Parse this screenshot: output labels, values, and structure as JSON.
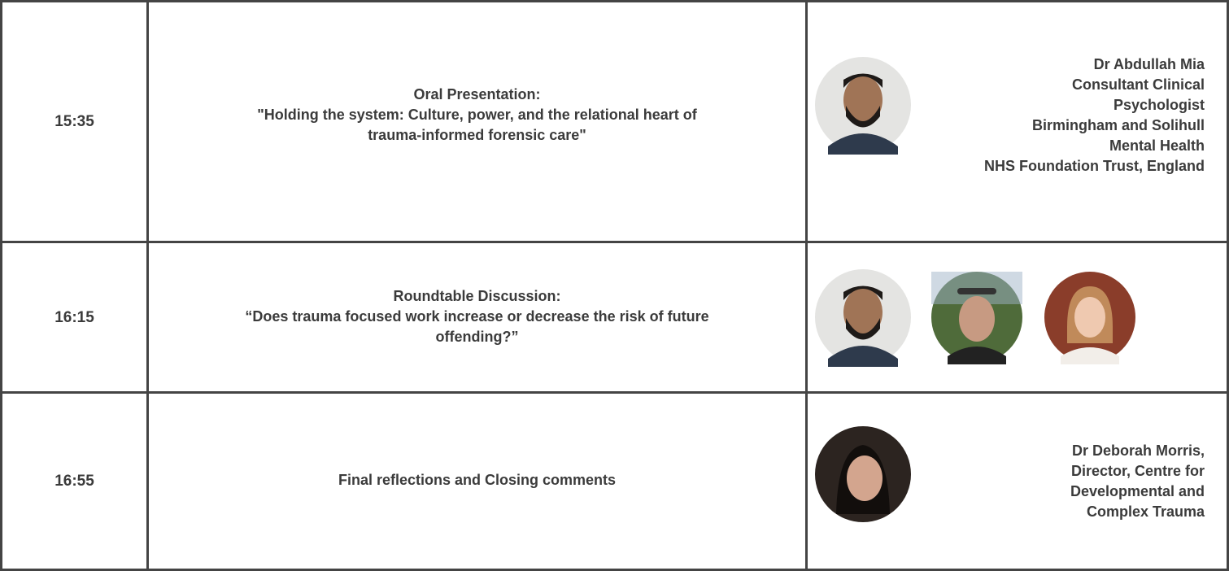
{
  "table": {
    "rows": [
      {
        "time": "15:35",
        "session": [
          "Oral Presentation:",
          "\"Holding the system: Culture, power, and the relational heart of",
          "trauma-informed forensic care\""
        ],
        "speaker": [
          "Dr Abdullah Mia",
          "Consultant Clinical",
          "Psychologist",
          "Birmingham and Solihull",
          "Mental Health",
          "NHS Foundation Trust, England"
        ]
      },
      {
        "time": "16:15",
        "session": [
          "Roundtable Discussion:",
          "“Does trauma focused work increase or decrease the risk of future",
          "offending?”"
        ]
      },
      {
        "time": "16:55",
        "session": [
          "Final reflections and Closing comments"
        ],
        "speaker": [
          "Dr Deborah Morris,",
          "Director, Centre for",
          "Developmental and",
          "Complex Trauma"
        ]
      }
    ]
  }
}
